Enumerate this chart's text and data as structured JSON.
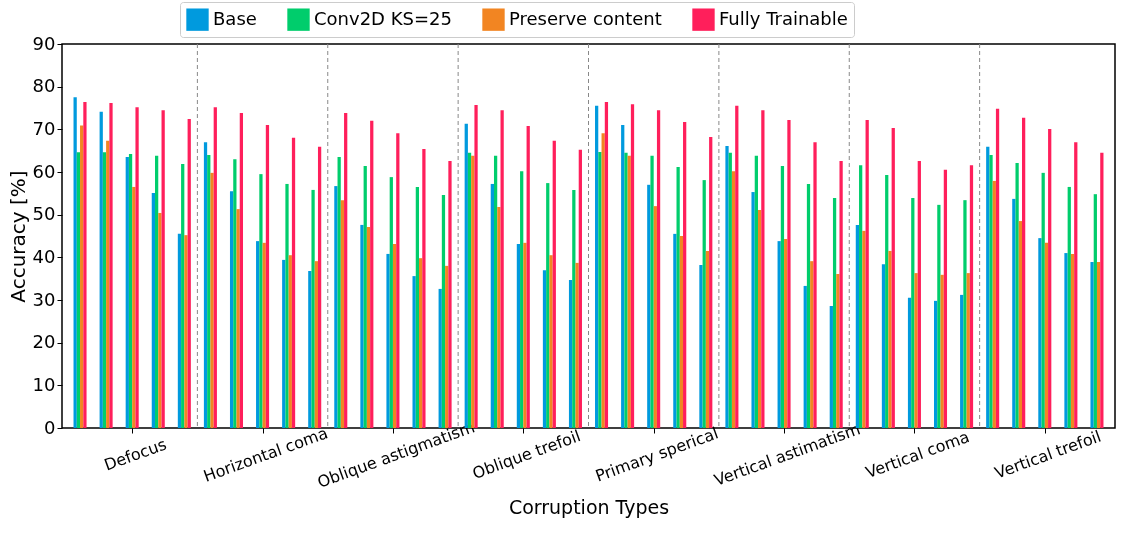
{
  "chart_data": {
    "type": "bar",
    "xlabel": "Corruption Types",
    "ylabel": "Accuracy [%]",
    "categories": [
      null,
      null,
      "Defocus",
      null,
      null,
      null,
      null,
      "Horizontal coma",
      null,
      null,
      null,
      null,
      "Oblique astigmatism",
      null,
      null,
      null,
      null,
      "Oblique trefoil",
      null,
      null,
      null,
      null,
      "Primary sperical",
      null,
      null,
      null,
      null,
      "Vertical astimatism",
      null,
      null,
      null,
      null,
      "Vertical coma",
      null,
      null,
      null,
      null,
      "Vertical trefoil",
      null,
      null
    ],
    "ylim": [
      0,
      90
    ],
    "yticks": [
      0,
      10,
      20,
      30,
      40,
      50,
      60,
      70,
      80,
      90
    ],
    "series": [
      {
        "name": "Base",
        "color": "#009ade",
        "values": [
          77.5,
          74.1,
          63.5,
          55.1,
          45.5,
          67.0,
          55.5,
          43.8,
          39.4,
          36.8,
          56.7,
          47.6,
          40.8,
          35.6,
          32.6,
          71.3,
          57.2,
          43.1,
          37.0,
          34.7,
          75.5,
          71.0,
          57.0,
          45.5,
          38.2,
          66.1,
          55.3,
          43.8,
          33.3,
          28.6,
          47.6,
          38.4,
          30.5,
          29.8,
          31.2,
          65.9,
          53.7,
          44.5,
          41.0,
          38.9
        ]
      },
      {
        "name": "Conv2D KS=25",
        "color": "#00cd6c",
        "values": [
          64.6,
          64.6,
          64.2,
          63.8,
          61.9,
          64.0,
          63.0,
          59.5,
          57.2,
          55.8,
          63.5,
          61.4,
          58.8,
          56.5,
          54.6,
          64.5,
          63.8,
          60.2,
          57.4,
          55.8,
          64.7,
          64.5,
          63.8,
          61.2,
          58.1,
          64.5,
          63.8,
          61.4,
          57.2,
          53.9,
          61.6,
          59.3,
          53.9,
          52.3,
          53.4,
          64.0,
          62.1,
          59.8,
          56.5,
          54.8
        ]
      },
      {
        "name": "Preserve content",
        "color": "#f28522",
        "values": [
          70.9,
          67.3,
          56.5,
          50.4,
          45.2,
          59.8,
          51.3,
          43.4,
          40.5,
          39.1,
          53.4,
          47.1,
          43.1,
          39.8,
          38.0,
          63.8,
          51.8,
          43.4,
          40.5,
          38.7,
          69.1,
          63.8,
          52.0,
          45.0,
          41.5,
          60.2,
          51.1,
          44.3,
          39.1,
          36.1,
          46.2,
          41.5,
          36.3,
          35.9,
          36.3,
          57.9,
          48.5,
          43.4,
          40.8,
          38.9
        ]
      },
      {
        "name": "Fully Trainable",
        "color": "#ff1f5b",
        "values": [
          76.4,
          76.2,
          75.2,
          74.5,
          72.4,
          75.2,
          73.8,
          71.0,
          68.0,
          65.9,
          73.8,
          72.0,
          69.1,
          65.4,
          62.6,
          75.7,
          74.5,
          70.8,
          67.3,
          65.2,
          76.4,
          75.9,
          74.5,
          71.7,
          68.2,
          75.5,
          74.5,
          72.2,
          67.0,
          62.6,
          72.2,
          70.3,
          62.6,
          60.5,
          61.6,
          74.8,
          72.7,
          70.1,
          67.0,
          64.5
        ]
      }
    ],
    "legend": "top",
    "grid": false
  }
}
